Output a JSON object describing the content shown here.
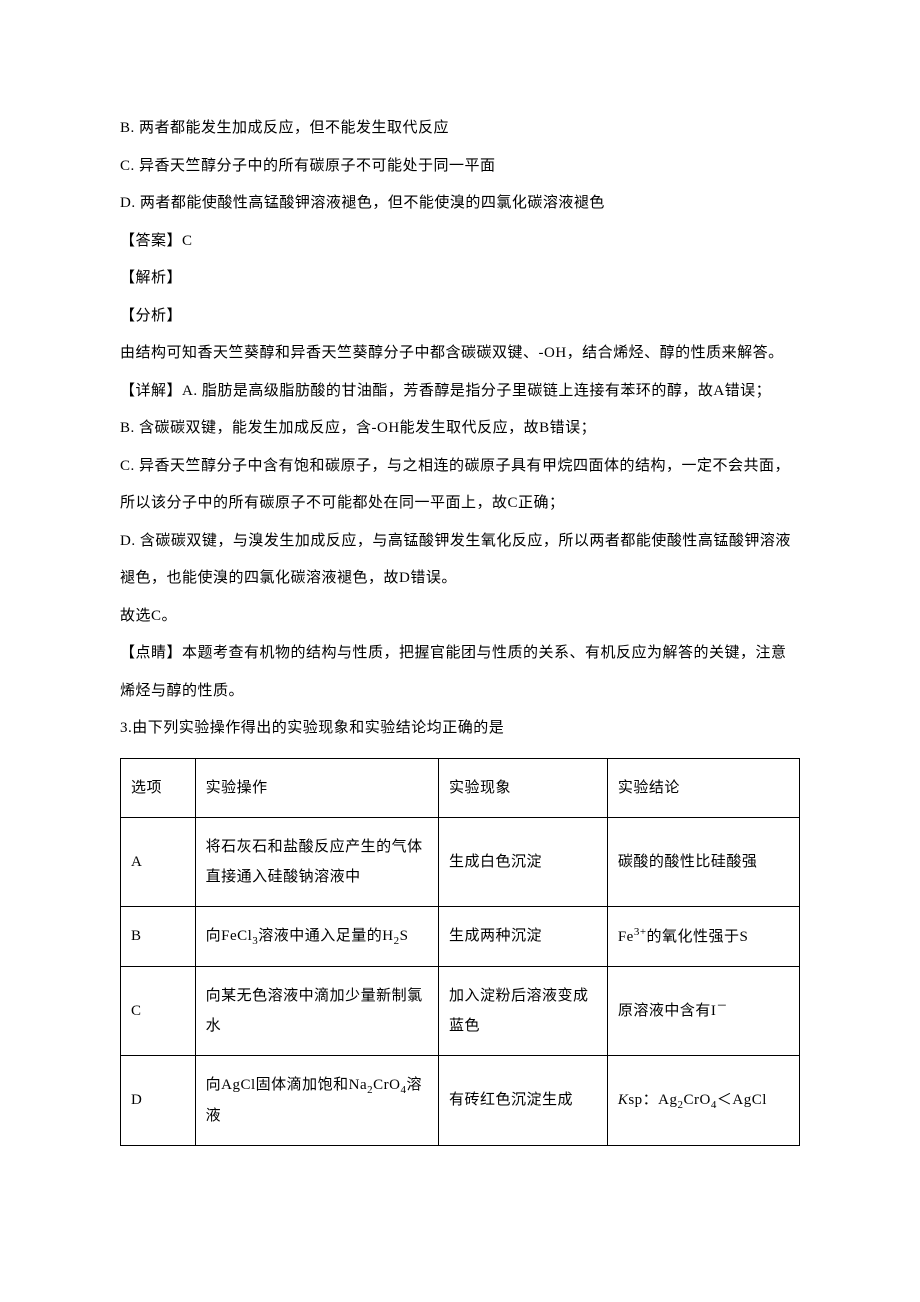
{
  "options": {
    "b": "B. 两者都能发生加成反应，但不能发生取代反应",
    "c": "C. 异香天竺醇分子中的所有碳原子不可能处于同一平面",
    "d": "D. 两者都能使酸性高锰酸钾溶液褪色，但不能使溴的四氯化碳溶液褪色"
  },
  "answerLabel": "【答案】C",
  "explainLabel": "【解析】",
  "analysisLabel": "【分析】",
  "analysisBody": "由结构可知香天竺葵醇和异香天竺葵醇分子中都含碳碳双键、-OH，结合烯烃、醇的性质来解答。",
  "detail": {
    "a": "【详解】A. 脂肪是高级脂肪酸的甘油酯，芳香醇是指分子里碳链上连接有苯环的醇，故A错误；",
    "b": "B. 含碳碳双键，能发生加成反应，含-OH能发生取代反应，故B错误；",
    "c": "C. 异香天竺醇分子中含有饱和碳原子，与之相连的碳原子具有甲烷四面体的结构，一定不会共面，所以该分子中的所有碳原子不可能都处在同一平面上，故C正确；",
    "d": "D. 含碳碳双键，与溴发生加成反应，与高锰酸钾发生氧化反应，所以两者都能使酸性高锰酸钾溶液褪色，也能使溴的四氯化碳溶液褪色，故D错误。",
    "so": "故选C。"
  },
  "tip": "【点睛】本题考查有机物的结构与性质，把握官能团与性质的关系、有机反应为解答的关键，注意烯烃与醇的性质。",
  "q3stem": "3.由下列实验操作得出的实验现象和实验结论均正确的是",
  "table": {
    "head": {
      "opt": "选项",
      "op": "实验操作",
      "ph": "实验现象",
      "con": "实验结论"
    },
    "rows": [
      {
        "opt": "A",
        "op": "将石灰石和盐酸反应产生的气体直接通入硅酸钠溶液中",
        "ph": "生成白色沉淀",
        "con": "碳酸的酸性比硅酸强"
      },
      {
        "opt": "B",
        "ph": "生成两种沉淀"
      },
      {
        "opt": "C",
        "op": "向某无色溶液中滴加少量新制氯水",
        "ph": "加入淀粉后溶液变成蓝色"
      },
      {
        "opt": "D",
        "ph": "有砖红色沉淀生成"
      }
    ]
  }
}
